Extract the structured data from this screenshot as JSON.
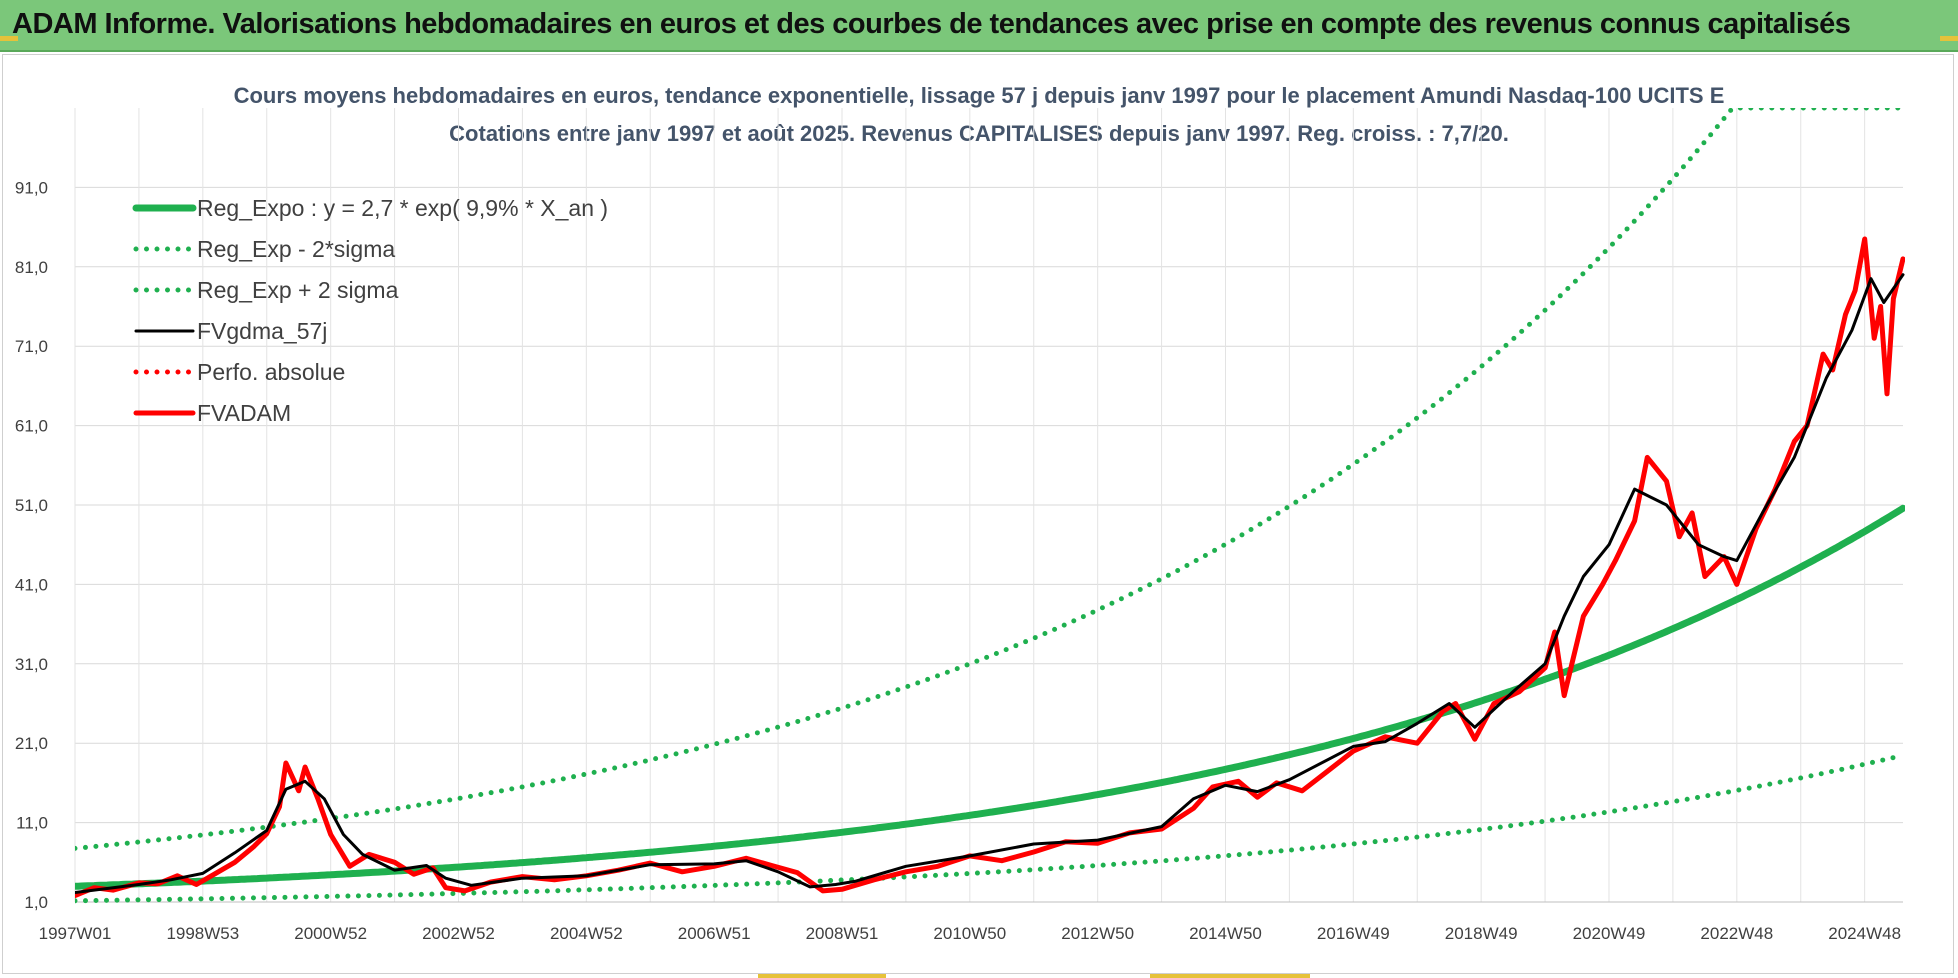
{
  "banner": {
    "title": "ADAM Informe. Valorisations hebdomadaires en euros et des courbes de tendances avec prise en compte des revenus connus capitalisés"
  },
  "colors": {
    "banner_bg": "#7bc77a",
    "trend_green": "#1fb04f",
    "perf_red": "#ff0000",
    "smooth_black": "#000000",
    "title_text": "#44546a"
  },
  "chart_data": {
    "type": "line",
    "title": "Cours moyens hebdomadaires en euros, tendance exponentielle, lissage 57 j depuis janv 1997 pour le placement Amundi Nasdaq-100 UCITS E",
    "subtitle": "Cotations entre janv 1997 et août 2025. Revenus CAPITALISES depuis janv 1997. Reg. croiss. : 7,7/20.",
    "xlabel": "",
    "ylabel": "",
    "x_range": [
      1997.0,
      2025.6
    ],
    "ylim": [
      1.0,
      101.0
    ],
    "grid": true,
    "legend_position": "top-left",
    "y_ticks": [
      "1,0",
      "11,0",
      "21,0",
      "31,0",
      "41,0",
      "51,0",
      "61,0",
      "71,0",
      "81,0",
      "91,0"
    ],
    "y_tick_values": [
      1,
      11,
      21,
      31,
      41,
      51,
      61,
      71,
      81,
      91
    ],
    "x_ticks": [
      "1997W01",
      "1998W53",
      "2000W52",
      "2002W52",
      "2004W52",
      "2006W51",
      "2008W51",
      "2010W50",
      "2012W50",
      "2014W50",
      "2016W49",
      "2018W49",
      "2020W49",
      "2022W48",
      "2024W48"
    ],
    "x_tick_values": [
      1997.0,
      1999.0,
      2001.0,
      2003.0,
      2005.0,
      2007.0,
      2009.0,
      2011.0,
      2013.0,
      2015.0,
      2017.0,
      2019.0,
      2021.0,
      2023.0,
      2025.0
    ],
    "regression": {
      "a": 2.7,
      "b": 0.099,
      "x0": 1996.0,
      "lower_factor": 0.385,
      "upper_factor": 2.6,
      "x_range": [
        1997.0,
        2025.6
      ]
    },
    "series": [
      {
        "name": "Reg_Expo : y = 2,7 * exp( 9,9% *  X_an )",
        "style": "solid",
        "color": "#1fb04f",
        "x": [
          1997.0,
          2000.0,
          2005.0,
          2010.0,
          2015.0,
          2020.0,
          2025.6
        ],
        "values": [
          3.0,
          4.0,
          6.6,
          10.8,
          17.7,
          29.1,
          46.0
        ]
      },
      {
        "name": "Reg_Exp - 2*sigma",
        "style": "dotted",
        "color": "#1fb04f",
        "x": [
          1997.0,
          2000.0,
          2005.0,
          2010.0,
          2015.0,
          2020.0,
          2025.6
        ],
        "values": [
          1.0,
          1.5,
          2.6,
          4.1,
          6.8,
          11.2,
          17.7
        ]
      },
      {
        "name": "Reg_Exp + 2 sigma",
        "style": "dotted",
        "color": "#1fb04f",
        "x": [
          1997.0,
          2000.0,
          2005.0,
          2010.0,
          2015.0,
          2020.0,
          2023.3,
          2025.6
        ],
        "values": [
          7.7,
          10.4,
          17.2,
          28.1,
          46.0,
          75.6,
          101.0,
          101.0
        ]
      },
      {
        "name": "FVgdma_57j",
        "style": "solid-thin",
        "color": "#000000",
        "x": [
          1997.0,
          1997.5,
          1998.0,
          1998.5,
          1999.0,
          1999.5,
          2000.0,
          2000.3,
          2000.6,
          2000.9,
          2001.2,
          2001.5,
          2002.0,
          2002.5,
          2002.8,
          2003.2,
          2004.0,
          2005.0,
          2006.0,
          2007.0,
          2007.5,
          2008.0,
          2008.5,
          2008.9,
          2009.2,
          2010.0,
          2011.0,
          2012.0,
          2013.0,
          2014.0,
          2014.5,
          2015.0,
          2015.5,
          2016.0,
          2017.0,
          2017.5,
          2018.0,
          2018.5,
          2018.9,
          2019.5,
          2020.0,
          2020.3,
          2020.6,
          2021.0,
          2021.4,
          2021.9,
          2022.4,
          2022.8,
          2023.0,
          2023.4,
          2023.9,
          2024.4,
          2024.8,
          2025.1,
          2025.3,
          2025.6
        ],
        "values": [
          2.2,
          2.7,
          3.2,
          3.8,
          4.6,
          7.2,
          10.0,
          15.2,
          16.2,
          14.0,
          9.5,
          7.0,
          5.0,
          5.6,
          4.0,
          3.1,
          4.0,
          4.3,
          5.7,
          5.8,
          6.2,
          4.8,
          2.9,
          3.2,
          3.6,
          5.5,
          6.8,
          8.3,
          8.8,
          10.5,
          14.0,
          15.7,
          14.9,
          16.4,
          20.6,
          21.2,
          23.5,
          26.0,
          23.0,
          27.5,
          31.0,
          37.0,
          42.0,
          46.0,
          53.0,
          51.0,
          46.0,
          44.5,
          44.0,
          50.0,
          57.0,
          67.0,
          73.0,
          79.5,
          76.5,
          80.0
        ]
      },
      {
        "name": "Perfo. absolue",
        "style": "dotted",
        "color": "#ff0000",
        "x": [],
        "values": []
      },
      {
        "name": "FVADAM",
        "style": "solid-thick",
        "color": "#ff0000",
        "x": [
          1997.0,
          1997.3,
          1997.6,
          1998.0,
          1998.3,
          1998.6,
          1998.9,
          1999.2,
          1999.5,
          1999.8,
          2000.0,
          2000.2,
          2000.3,
          2000.5,
          2000.6,
          2000.8,
          2001.0,
          2001.3,
          2001.6,
          2002.0,
          2002.3,
          2002.6,
          2002.8,
          2003.1,
          2003.5,
          2004.0,
          2004.5,
          2005.0,
          2005.5,
          2006.0,
          2006.5,
          2007.0,
          2007.5,
          2007.9,
          2008.3,
          2008.7,
          2009.0,
          2009.5,
          2010.0,
          2010.5,
          2011.0,
          2011.5,
          2012.0,
          2012.5,
          2013.0,
          2013.5,
          2014.0,
          2014.5,
          2014.8,
          2015.2,
          2015.5,
          2015.8,
          2016.2,
          2016.6,
          2017.0,
          2017.5,
          2018.0,
          2018.4,
          2018.6,
          2018.9,
          2019.2,
          2019.6,
          2020.0,
          2020.15,
          2020.3,
          2020.6,
          2020.9,
          2021.1,
          2021.4,
          2021.6,
          2021.9,
          2022.1,
          2022.3,
          2022.5,
          2022.8,
          2023.0,
          2023.3,
          2023.6,
          2023.9,
          2024.1,
          2024.35,
          2024.5,
          2024.7,
          2024.85,
          2025.0,
          2025.15,
          2025.25,
          2025.35,
          2025.45,
          2025.6
        ],
        "values": [
          1.8,
          2.8,
          2.5,
          3.4,
          3.3,
          4.3,
          3.2,
          4.6,
          6.0,
          8.0,
          9.6,
          13.0,
          18.5,
          15.0,
          18.0,
          14.0,
          9.5,
          5.5,
          7.0,
          6.0,
          4.5,
          5.3,
          2.8,
          2.4,
          3.5,
          4.2,
          3.8,
          4.3,
          5.0,
          5.9,
          4.8,
          5.5,
          6.5,
          5.6,
          4.7,
          2.4,
          2.6,
          3.8,
          4.8,
          5.5,
          6.8,
          6.2,
          7.3,
          8.6,
          8.4,
          9.7,
          10.2,
          12.8,
          15.5,
          16.2,
          14.2,
          16.0,
          15.0,
          17.5,
          20.0,
          21.8,
          21.0,
          25.0,
          26.0,
          21.5,
          26.0,
          27.5,
          30.5,
          35.0,
          27.0,
          37.0,
          41.0,
          44.0,
          49.0,
          57.0,
          54.0,
          47.0,
          50.0,
          42.0,
          44.5,
          41.0,
          48.0,
          53.0,
          59.0,
          61.0,
          70.0,
          68.0,
          75.0,
          78.0,
          84.5,
          72.0,
          76.0,
          65.0,
          77.0,
          82.0
        ]
      }
    ]
  },
  "legend": [
    {
      "label": "Reg_Expo : y = 2,7 * exp( 9,9% *  X_an )",
      "color": "#1fb04f",
      "style": "solid"
    },
    {
      "label": "Reg_Exp - 2*sigma",
      "color": "#1fb04f",
      "style": "dotted"
    },
    {
      "label": "Reg_Exp + 2 sigma",
      "color": "#1fb04f",
      "style": "dotted"
    },
    {
      "label": "FVgdma_57j",
      "color": "#000000",
      "style": "solid-thin"
    },
    {
      "label": "Perfo. absolue",
      "color": "#ff0000",
      "style": "dotted"
    },
    {
      "label": "FVADAM",
      "color": "#ff0000",
      "style": "solid-thick"
    }
  ]
}
